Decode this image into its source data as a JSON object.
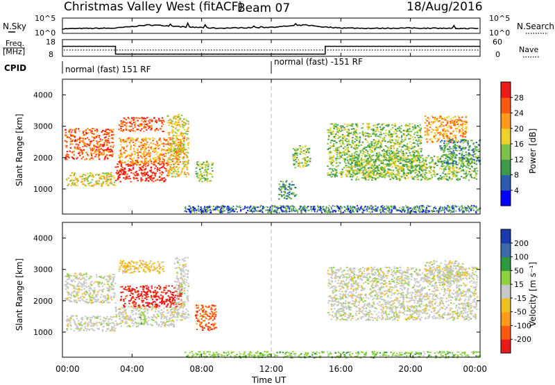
{
  "header": {
    "station": "Christmas Valley West (fitACF)",
    "beam": "Beam 07",
    "date": "18/Aug/2016"
  },
  "noise_panel": {
    "left_label": "N.Sky",
    "right_label": "N.Search",
    "ticks_left": [
      "10^5",
      "10^0"
    ],
    "ticks_right": [
      "10^5",
      "10^0"
    ]
  },
  "freq_panel": {
    "left_label_1": "Freq.",
    "left_label_2": "[MHz]",
    "ticks_left": [
      "18",
      "8"
    ],
    "ticks_right": [
      "60",
      "0"
    ],
    "right_label": "Nave"
  },
  "cpid_panel": {
    "label": "CPID",
    "segments": [
      "normal (fast) 151 RF",
      "normal (fast) -151 RF"
    ]
  },
  "x_axis": {
    "ticks": [
      "00:00",
      "04:00",
      "08:00",
      "12:00",
      "16:00",
      "20:00",
      "00:00"
    ],
    "label": "Time UT"
  },
  "power_panel": {
    "ylabel": "Slant Range [km]",
    "yticks": [
      "1000",
      "2000",
      "3000",
      "4000"
    ],
    "colorbar_label": "Power [dB]",
    "colorbar_ticks": [
      "28",
      "24",
      "20",
      "16",
      "12",
      "8",
      "4"
    ]
  },
  "velocity_panel": {
    "ylabel": "Slant Range [km]",
    "yticks": [
      "1000",
      "2000",
      "3000",
      "4000"
    ],
    "colorbar_label": "Velocity [m s⁻¹]",
    "colorbar_ticks": [
      "200",
      "100",
      "50",
      "15",
      "-15",
      "-50",
      "-100",
      "-200"
    ]
  },
  "colors": {
    "power_scale": [
      "#0000ff",
      "#2a5cb0",
      "#3e9a4a",
      "#7cc24a",
      "#f0d02a",
      "#ff9a1a",
      "#ff5a10",
      "#ee1a1a"
    ],
    "velocity_scale": [
      "#e81a1a",
      "#ff5a10",
      "#ff9a1a",
      "#f0c020",
      "#c8c8c8",
      "#8cd23c",
      "#2e9a40",
      "#3a6aa8",
      "#1a3ab0"
    ]
  },
  "chart_data": [
    {
      "type": "line",
      "name": "noise",
      "x": [
        0,
        1,
        2,
        3,
        4,
        5,
        6,
        7,
        8,
        9,
        10,
        11,
        12,
        13,
        14,
        15,
        16,
        17,
        18,
        19,
        20,
        21,
        22,
        23,
        24
      ],
      "series": [
        {
          "values": [
            0.3,
            0.32,
            0.33,
            0.34,
            0.45,
            0.55,
            0.5,
            0.42,
            0.38,
            0.34,
            0.36,
            0.38,
            0.4,
            0.48,
            0.55,
            0.42,
            0.36,
            0.34,
            0.33,
            0.34,
            0.35,
            0.34,
            0.33,
            0.32,
            0.32
          ]
        }
      ]
    },
    {
      "type": "line",
      "name": "frequency",
      "x": [
        0,
        3.05,
        3.05,
        15.1,
        15.1,
        24
      ],
      "series": [
        {
          "values": [
            14,
            14,
            9.3,
            9.3,
            14,
            14
          ]
        }
      ],
      "ylim": [
        8,
        18
      ]
    },
    {
      "type": "heatmap",
      "name": "power",
      "xlim": [
        0,
        24
      ],
      "ylim": [
        200,
        4500
      ],
      "regions": [
        {
          "x": [
            0.1,
            2.9
          ],
          "y": [
            1950,
            2950
          ],
          "level": 6
        },
        {
          "x": [
            0.2,
            3.0
          ],
          "y": [
            1100,
            1550
          ],
          "level": 4
        },
        {
          "x": [
            3.0,
            6.0
          ],
          "y": [
            1250,
            1900
          ],
          "level": 7
        },
        {
          "x": [
            3.2,
            7.0
          ],
          "y": [
            1800,
            2650
          ],
          "level": 5
        },
        {
          "x": [
            3.2,
            5.8
          ],
          "y": [
            2850,
            3300
          ],
          "level": 6
        },
        {
          "x": [
            6.0,
            7.2
          ],
          "y": [
            1400,
            3400
          ],
          "level": 4
        },
        {
          "x": [
            7.6,
            8.6
          ],
          "y": [
            1250,
            1900
          ],
          "level": 3
        },
        {
          "x": [
            13.2,
            14.2
          ],
          "y": [
            1700,
            2400
          ],
          "level": 3
        },
        {
          "x": [
            12.4,
            13.4
          ],
          "y": [
            700,
            1300
          ],
          "level": 2
        },
        {
          "x": [
            15.2,
            20.6
          ],
          "y": [
            1400,
            3100
          ],
          "level": 3
        },
        {
          "x": [
            16.5,
            23.8
          ],
          "y": [
            1300,
            2100
          ],
          "level": 3
        },
        {
          "x": [
            20.8,
            23.2
          ],
          "y": [
            2500,
            3350
          ],
          "level": 5
        },
        {
          "x": [
            21.6,
            24.0
          ],
          "y": [
            1800,
            2600
          ],
          "level": 2
        }
      ]
    },
    {
      "type": "heatmap",
      "name": "velocity",
      "xlim": [
        0,
        24
      ],
      "ylim": [
        200,
        4500
      ],
      "regions": [
        {
          "x": [
            0.1,
            3.0
          ],
          "y": [
            1950,
            2900
          ],
          "level": 4
        },
        {
          "x": [
            0.2,
            3.0
          ],
          "y": [
            1050,
            1550
          ],
          "level": 4
        },
        {
          "x": [
            3.0,
            6.4
          ],
          "y": [
            1200,
            1850
          ],
          "level": 4
        },
        {
          "x": [
            3.3,
            6.8
          ],
          "y": [
            1800,
            2500
          ],
          "level": 0
        },
        {
          "x": [
            3.2,
            5.8
          ],
          "y": [
            2900,
            3300
          ],
          "level": 3
        },
        {
          "x": [
            6.4,
            7.2
          ],
          "y": [
            1400,
            3400
          ],
          "level": 4
        },
        {
          "x": [
            7.6,
            8.8
          ],
          "y": [
            1050,
            1900
          ],
          "level": 1
        },
        {
          "x": [
            15.2,
            23.8
          ],
          "y": [
            1400,
            3100
          ],
          "level": 4
        },
        {
          "x": [
            20.8,
            23.0
          ],
          "y": [
            2600,
            3300
          ],
          "level": 4
        },
        {
          "x": [
            7.0,
            24.0
          ],
          "y": [
            200,
            400
          ],
          "level": 5
        },
        {
          "x": [
            4.4,
            4.7
          ],
          "y": [
            1250,
            1700
          ],
          "level": 5
        }
      ]
    }
  ]
}
